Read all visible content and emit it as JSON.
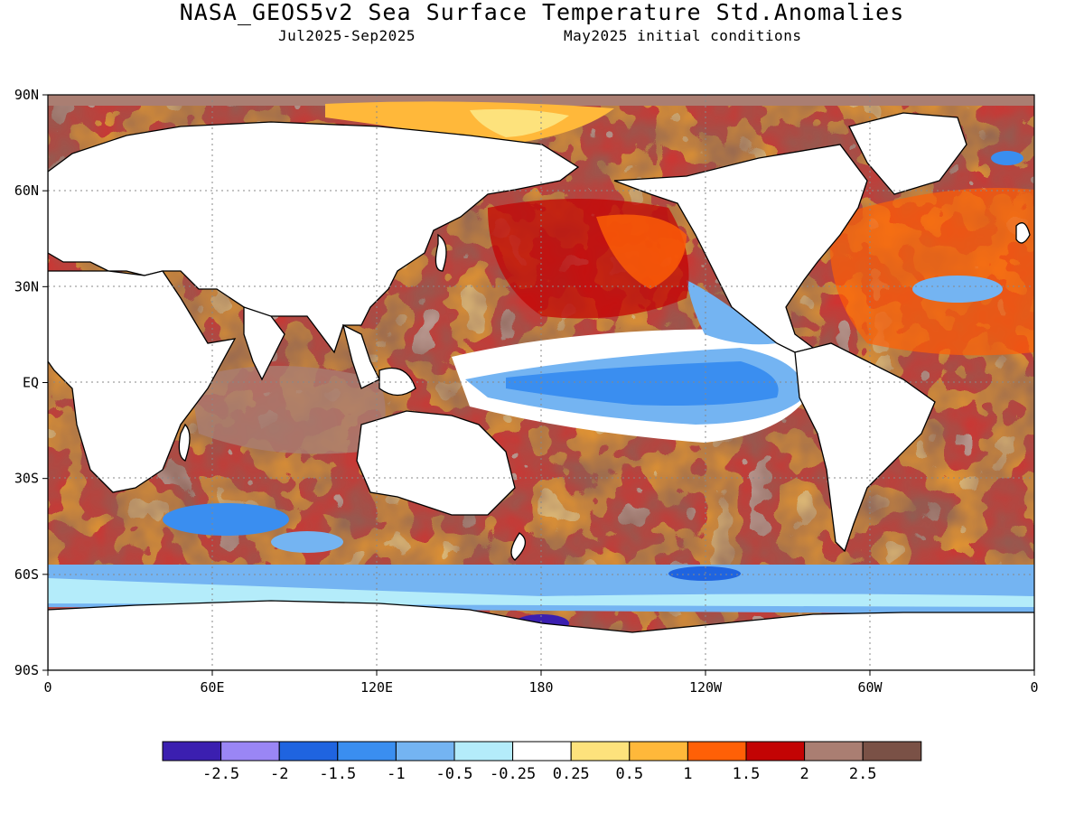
{
  "title": "NASA_GEOS5v2 Sea Surface Temperature Std.Anomalies",
  "subtitle_left": "Jul2025-Sep2025",
  "subtitle_right": "May2025 initial conditions",
  "axes": {
    "y_ticks": [
      "90N",
      "60N",
      "30N",
      "EQ",
      "30S",
      "60S",
      "90S"
    ],
    "x_ticks": [
      "0",
      "60E",
      "120E",
      "180",
      "120W",
      "60W",
      "0"
    ]
  },
  "legend": {
    "colors": [
      "#3b1fb0",
      "#9a86f5",
      "#1f64e0",
      "#3a8ef0",
      "#74b4f2",
      "#b4ecfa",
      "#ffffff",
      "#fde27c",
      "#ffb83a",
      "#ff6006",
      "#c30404",
      "#aa7e72",
      "#7a5146"
    ],
    "labels": [
      "-2.5",
      "-2",
      "-1.5",
      "-1",
      "-0.5",
      "-0.25",
      "0.25",
      "0.5",
      "1",
      "1.5",
      "2",
      "2.5"
    ]
  },
  "colors": {
    "land": "#ffffff",
    "coastline": "#000000",
    "grid": "#888888"
  }
}
